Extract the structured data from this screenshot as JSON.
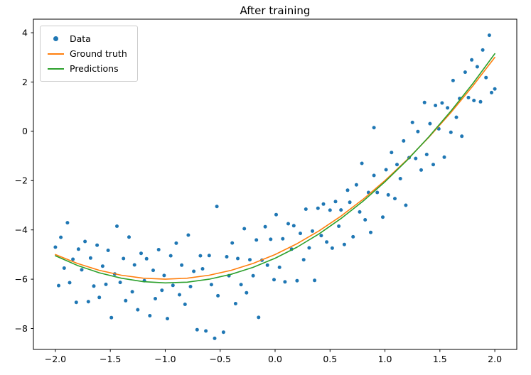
{
  "title": "After training",
  "chart_data": {
    "type": "scatter",
    "title": "After training",
    "xlabel": "",
    "ylabel": "",
    "xlim": [
      -2.2,
      2.2
    ],
    "ylim": [
      -8.85,
      4.55
    ],
    "grid": false,
    "legend_position": "upper left",
    "x_ticks": [
      -2.0,
      -1.5,
      -1.0,
      -0.5,
      0.0,
      0.5,
      1.0,
      1.5,
      2.0
    ],
    "x_tick_labels": [
      "−2.0",
      "−1.5",
      "−1.0",
      "−0.5",
      "0.0",
      "0.5",
      "1.0",
      "1.5",
      "2.0"
    ],
    "y_ticks": [
      -8,
      -6,
      -4,
      -2,
      0,
      2,
      4
    ],
    "y_tick_labels": [
      "−8",
      "−6",
      "−4",
      "−2",
      "0",
      "2",
      "4"
    ],
    "series": [
      {
        "name": "Data",
        "type": "scatter",
        "color": "#1f77b4",
        "marker_size": 2.5,
        "points": [
          [
            -2.0,
            -4.7
          ],
          [
            -1.97,
            -6.26
          ],
          [
            -1.95,
            -4.3
          ],
          [
            -1.92,
            -5.55
          ],
          [
            -1.89,
            -3.71
          ],
          [
            -1.87,
            -6.14
          ],
          [
            -1.84,
            -5.19
          ],
          [
            -1.81,
            -6.94
          ],
          [
            -1.79,
            -4.78
          ],
          [
            -1.76,
            -5.62
          ],
          [
            -1.73,
            -4.47
          ],
          [
            -1.7,
            -6.91
          ],
          [
            -1.68,
            -5.14
          ],
          [
            -1.65,
            -6.28
          ],
          [
            -1.62,
            -4.62
          ],
          [
            -1.6,
            -6.74
          ],
          [
            -1.57,
            -5.47
          ],
          [
            -1.54,
            -6.21
          ],
          [
            -1.52,
            -4.83
          ],
          [
            -1.49,
            -7.56
          ],
          [
            -1.46,
            -5.79
          ],
          [
            -1.44,
            -3.85
          ],
          [
            -1.41,
            -6.13
          ],
          [
            -1.38,
            -5.16
          ],
          [
            -1.36,
            -6.87
          ],
          [
            -1.33,
            -4.29
          ],
          [
            -1.3,
            -6.51
          ],
          [
            -1.28,
            -5.42
          ],
          [
            -1.25,
            -7.24
          ],
          [
            -1.22,
            -4.95
          ],
          [
            -1.19,
            -6.06
          ],
          [
            -1.17,
            -5.17
          ],
          [
            -1.14,
            -7.48
          ],
          [
            -1.11,
            -5.64
          ],
          [
            -1.09,
            -6.79
          ],
          [
            -1.06,
            -4.8
          ],
          [
            -1.03,
            -6.45
          ],
          [
            -1.01,
            -5.85
          ],
          [
            -0.98,
            -7.6
          ],
          [
            -0.95,
            -5.05
          ],
          [
            -0.93,
            -6.25
          ],
          [
            -0.9,
            -4.54
          ],
          [
            -0.87,
            -6.63
          ],
          [
            -0.85,
            -5.43
          ],
          [
            -0.82,
            -7.02
          ],
          [
            -0.79,
            -4.21
          ],
          [
            -0.77,
            -6.3
          ],
          [
            -0.74,
            -5.68
          ],
          [
            -0.71,
            -8.05
          ],
          [
            -0.68,
            -5.05
          ],
          [
            -0.66,
            -5.58
          ],
          [
            -0.63,
            -8.1
          ],
          [
            -0.6,
            -5.04
          ],
          [
            -0.58,
            -6.22
          ],
          [
            -0.55,
            -8.4
          ],
          [
            -0.52,
            -6.67
          ],
          [
            -0.53,
            -3.05
          ],
          [
            -0.47,
            -8.15
          ],
          [
            -0.44,
            -5.09
          ],
          [
            -0.42,
            -5.86
          ],
          [
            -0.39,
            -4.53
          ],
          [
            -0.36,
            -6.99
          ],
          [
            -0.34,
            -5.16
          ],
          [
            -0.31,
            -6.22
          ],
          [
            -0.28,
            -3.95
          ],
          [
            -0.26,
            -6.55
          ],
          [
            -0.23,
            -5.21
          ],
          [
            -0.2,
            -5.86
          ],
          [
            -0.17,
            -4.41
          ],
          [
            -0.15,
            -7.55
          ],
          [
            -0.12,
            -5.23
          ],
          [
            -0.09,
            -3.87
          ],
          [
            -0.07,
            -5.43
          ],
          [
            -0.04,
            -4.38
          ],
          [
            -0.01,
            -6.02
          ],
          [
            0.01,
            -3.38
          ],
          [
            0.04,
            -5.52
          ],
          [
            0.07,
            -4.36
          ],
          [
            0.09,
            -6.11
          ],
          [
            0.12,
            -3.75
          ],
          [
            0.15,
            -4.78
          ],
          [
            0.17,
            -3.83
          ],
          [
            0.2,
            -6.06
          ],
          [
            0.23,
            -4.14
          ],
          [
            0.26,
            -5.21
          ],
          [
            0.28,
            -3.16
          ],
          [
            0.31,
            -4.73
          ],
          [
            0.34,
            -4.05
          ],
          [
            0.36,
            -6.05
          ],
          [
            0.39,
            -3.12
          ],
          [
            0.42,
            -4.23
          ],
          [
            0.44,
            -2.95
          ],
          [
            0.47,
            -4.49
          ],
          [
            0.5,
            -3.2
          ],
          [
            0.52,
            -4.74
          ],
          [
            0.55,
            -2.85
          ],
          [
            0.58,
            -3.85
          ],
          [
            0.6,
            -3.19
          ],
          [
            0.63,
            -4.59
          ],
          [
            0.66,
            -2.39
          ],
          [
            0.68,
            -2.88
          ],
          [
            0.71,
            -4.28
          ],
          [
            0.74,
            -2.17
          ],
          [
            0.77,
            -3.27
          ],
          [
            0.79,
            -1.3
          ],
          [
            0.82,
            -3.59
          ],
          [
            0.85,
            -2.48
          ],
          [
            0.87,
            -4.1
          ],
          [
            0.9,
            -1.79
          ],
          [
            0.93,
            -2.48
          ],
          [
            0.9,
            0.15
          ],
          [
            0.98,
            -3.48
          ],
          [
            1.01,
            -1.56
          ],
          [
            1.03,
            -2.58
          ],
          [
            1.06,
            -0.86
          ],
          [
            1.09,
            -2.73
          ],
          [
            1.11,
            -1.35
          ],
          [
            1.14,
            -1.92
          ],
          [
            1.17,
            -0.39
          ],
          [
            1.19,
            -3.0
          ],
          [
            1.22,
            -1.07
          ],
          [
            1.25,
            0.36
          ],
          [
            1.28,
            -1.1
          ],
          [
            1.3,
            -0.01
          ],
          [
            1.33,
            -1.57
          ],
          [
            1.36,
            1.17
          ],
          [
            1.38,
            -0.94
          ],
          [
            1.41,
            0.31
          ],
          [
            1.44,
            -1.35
          ],
          [
            1.46,
            1.05
          ],
          [
            1.49,
            0.1
          ],
          [
            1.52,
            1.15
          ],
          [
            1.54,
            -1.05
          ],
          [
            1.57,
            0.95
          ],
          [
            1.6,
            -0.04
          ],
          [
            1.62,
            2.06
          ],
          [
            1.65,
            0.57
          ],
          [
            1.68,
            1.33
          ],
          [
            1.7,
            -0.2
          ],
          [
            1.73,
            2.4
          ],
          [
            1.76,
            1.37
          ],
          [
            1.79,
            2.9
          ],
          [
            1.81,
            1.25
          ],
          [
            1.84,
            2.62
          ],
          [
            1.87,
            1.2
          ],
          [
            1.89,
            3.3
          ],
          [
            1.92,
            2.18
          ],
          [
            1.95,
            3.9
          ],
          [
            1.97,
            1.57
          ],
          [
            2.0,
            1.72
          ]
        ]
      },
      {
        "name": "Ground truth",
        "type": "line",
        "color": "#ff7f0e",
        "line_width": 1.6,
        "points": [
          [
            -2.0,
            -5.0
          ],
          [
            -1.8,
            -5.36
          ],
          [
            -1.6,
            -5.64
          ],
          [
            -1.4,
            -5.84
          ],
          [
            -1.2,
            -5.96
          ],
          [
            -1.0,
            -6.0
          ],
          [
            -0.8,
            -5.96
          ],
          [
            -0.6,
            -5.84
          ],
          [
            -0.4,
            -5.64
          ],
          [
            -0.2,
            -5.36
          ],
          [
            0.0,
            -5.0
          ],
          [
            0.2,
            -4.56
          ],
          [
            0.4,
            -4.04
          ],
          [
            0.6,
            -3.44
          ],
          [
            0.8,
            -2.76
          ],
          [
            1.0,
            -2.0
          ],
          [
            1.2,
            -1.16
          ],
          [
            1.4,
            -0.24
          ],
          [
            1.6,
            0.76
          ],
          [
            1.8,
            1.84
          ],
          [
            2.0,
            3.0
          ]
        ]
      },
      {
        "name": "Predictions",
        "type": "line",
        "color": "#2ca02c",
        "line_width": 1.6,
        "points": [
          [
            -2.0,
            -5.05
          ],
          [
            -1.8,
            -5.44
          ],
          [
            -1.6,
            -5.74
          ],
          [
            -1.4,
            -5.96
          ],
          [
            -1.2,
            -6.1
          ],
          [
            -1.0,
            -6.15
          ],
          [
            -0.8,
            -6.12
          ],
          [
            -0.6,
            -6.0
          ],
          [
            -0.4,
            -5.8
          ],
          [
            -0.2,
            -5.52
          ],
          [
            0.0,
            -5.15
          ],
          [
            0.2,
            -4.7
          ],
          [
            0.4,
            -4.16
          ],
          [
            0.6,
            -3.54
          ],
          [
            0.8,
            -2.84
          ],
          [
            1.0,
            -2.05
          ],
          [
            1.2,
            -1.18
          ],
          [
            1.4,
            -0.22
          ],
          [
            1.6,
            0.82
          ],
          [
            1.8,
            1.94
          ],
          [
            2.0,
            3.15
          ]
        ]
      }
    ]
  }
}
